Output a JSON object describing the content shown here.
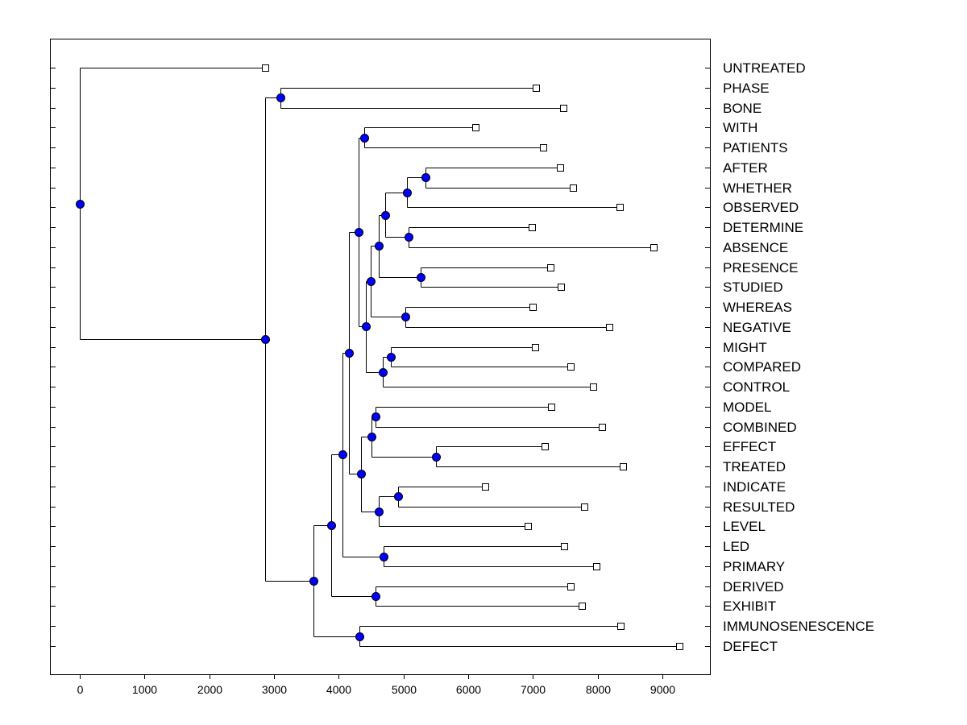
{
  "chart_data": {
    "type": "dendrogram",
    "title": "",
    "xlabel": "",
    "ylabel": "",
    "xlim": [
      -450,
      9750
    ],
    "xticks": [
      0,
      1000,
      2000,
      3000,
      4000,
      5000,
      6000,
      7000,
      8000,
      9000
    ],
    "xtick_labels": [
      "0",
      "1000",
      "2000",
      "3000",
      "4000",
      "5000",
      "6000",
      "7000",
      "8000",
      "9000"
    ],
    "colors": {
      "node_fill": "#0000ff",
      "leaf_fill": "#ffffff",
      "line": "#000000"
    },
    "leaves": [
      "UNTREATED",
      "PHASE",
      "BONE",
      "WITH",
      "PATIENTS",
      "AFTER",
      "WHETHER",
      "OBSERVED",
      "DETERMINE",
      "ABSENCE",
      "PRESENCE",
      "STUDIED",
      "WHEREAS",
      "NEGATIVE",
      "MIGHT",
      "COMPARED",
      "CONTROL",
      "MODEL",
      "COMBINED",
      "EFFECT",
      "TREATED",
      "INDICATE",
      "RESULTED",
      "LEVEL",
      "LED",
      "PRIMARY",
      "DERIVED",
      "EXHIBIT",
      "IMMUNOSENESCENCE",
      "DEFECT"
    ],
    "tree": {
      "h": 0,
      "children": [
        {
          "label": "UNTREATED",
          "h": 2863
        },
        {
          "h": 2863,
          "children": [
            {
              "h": 3100,
              "children": [
                {
                  "label": "PHASE",
                  "h": 7046
                },
                {
                  "label": "BONE",
                  "h": 7469
                }
              ]
            },
            {
              "h": 3610,
              "children": [
                {
                  "h": 3884,
                  "children": [
                    {
                      "h": 4058,
                      "children": [
                        {
                          "h": 4158,
                          "children": [
                            {
                              "h": 4307,
                              "children": [
                                {
                                  "h": 4394,
                                  "children": [
                                    {
                                      "label": "WITH",
                                      "h": 6112
                                    },
                                    {
                                      "label": "PATIENTS",
                                      "h": 7158
                                    }
                                  ]
                                },
                                {
                                  "h": 4419,
                                  "children": [
                                    {
                                      "h": 4494,
                                      "children": [
                                        {
                                          "h": 4619,
                                          "children": [
                                            {
                                              "h": 4718,
                                              "children": [
                                                {
                                                  "h": 5054,
                                                  "children": [
                                                    {
                                                      "h": 5340,
                                                      "children": [
                                                        {
                                                          "label": "AFTER",
                                                          "h": 7420
                                                        },
                                                        {
                                                          "label": "WHETHER",
                                                          "h": 7619
                                                        }
                                                      ]
                                                    },
                                                    {
                                                      "label": "OBSERVED",
                                                      "h": 8341
                                                    }
                                                  ]
                                                },
                                                {
                                                  "h": 5079,
                                                  "children": [
                                                    {
                                                      "label": "DETERMINE",
                                                      "h": 6984
                                                    },
                                                    {
                                                      "label": "ABSENCE",
                                                      "h": 8864
                                                    }
                                                  ]
                                                }
                                              ]
                                            },
                                            {
                                              "h": 5266,
                                              "children": [
                                                {
                                                  "label": "PRESENCE",
                                                  "h": 7270
                                                },
                                                {
                                                  "label": "STUDIED",
                                                  "h": 7432
                                                }
                                              ]
                                            }
                                          ]
                                        },
                                        {
                                          "h": 5029,
                                          "children": [
                                            {
                                              "label": "WHEREAS",
                                              "h": 6996
                                            },
                                            {
                                              "label": "NEGATIVE",
                                              "h": 8179
                                            }
                                          ]
                                        }
                                      ]
                                    },
                                    {
                                      "h": 4681,
                                      "children": [
                                        {
                                          "h": 4805,
                                          "children": [
                                            {
                                              "label": "MIGHT",
                                              "h": 7034
                                            },
                                            {
                                              "label": "COMPARED",
                                              "h": 7581
                                            }
                                          ]
                                        },
                                        {
                                          "label": "CONTROL",
                                          "h": 7930
                                        }
                                      ]
                                    }
                                  ]
                                }
                              ]
                            },
                            {
                              "h": 4345,
                              "children": [
                                {
                                  "h": 4507,
                                  "children": [
                                    {
                                      "h": 4569,
                                      "children": [
                                        {
                                          "label": "MODEL",
                                          "h": 7283
                                        },
                                        {
                                          "label": "COMBINED",
                                          "h": 8067
                                        }
                                      ]
                                    },
                                    {
                                      "h": 5502,
                                      "children": [
                                        {
                                          "label": "EFFECT",
                                          "h": 7183
                                        },
                                        {
                                          "label": "TREATED",
                                          "h": 8390
                                        }
                                      ]
                                    }
                                  ]
                                },
                                {
                                  "h": 4619,
                                  "children": [
                                    {
                                      "h": 4917,
                                      "children": [
                                        {
                                          "label": "INDICATE",
                                          "h": 6262
                                        },
                                        {
                                          "label": "RESULTED",
                                          "h": 7793
                                        }
                                      ]
                                    },
                                    {
                                      "label": "LEVEL",
                                      "h": 6921
                                    }
                                  ]
                                }
                              ]
                            }
                          ]
                        },
                        {
                          "h": 4693,
                          "children": [
                            {
                              "label": "LED",
                              "h": 7482
                            },
                            {
                              "label": "PRIMARY",
                              "h": 7980
                            }
                          ]
                        }
                      ]
                    },
                    {
                      "h": 4569,
                      "children": [
                        {
                          "label": "DERIVED",
                          "h": 7581
                        },
                        {
                          "label": "EXHIBIT",
                          "h": 7756
                        }
                      ]
                    }
                  ]
                },
                {
                  "h": 4320,
                  "children": [
                    {
                      "label": "IMMUNOSENESCENCE",
                      "h": 8353
                    },
                    {
                      "label": "DEFECT",
                      "h": 9262
                    }
                  ]
                }
              ]
            }
          ]
        }
      ]
    }
  }
}
